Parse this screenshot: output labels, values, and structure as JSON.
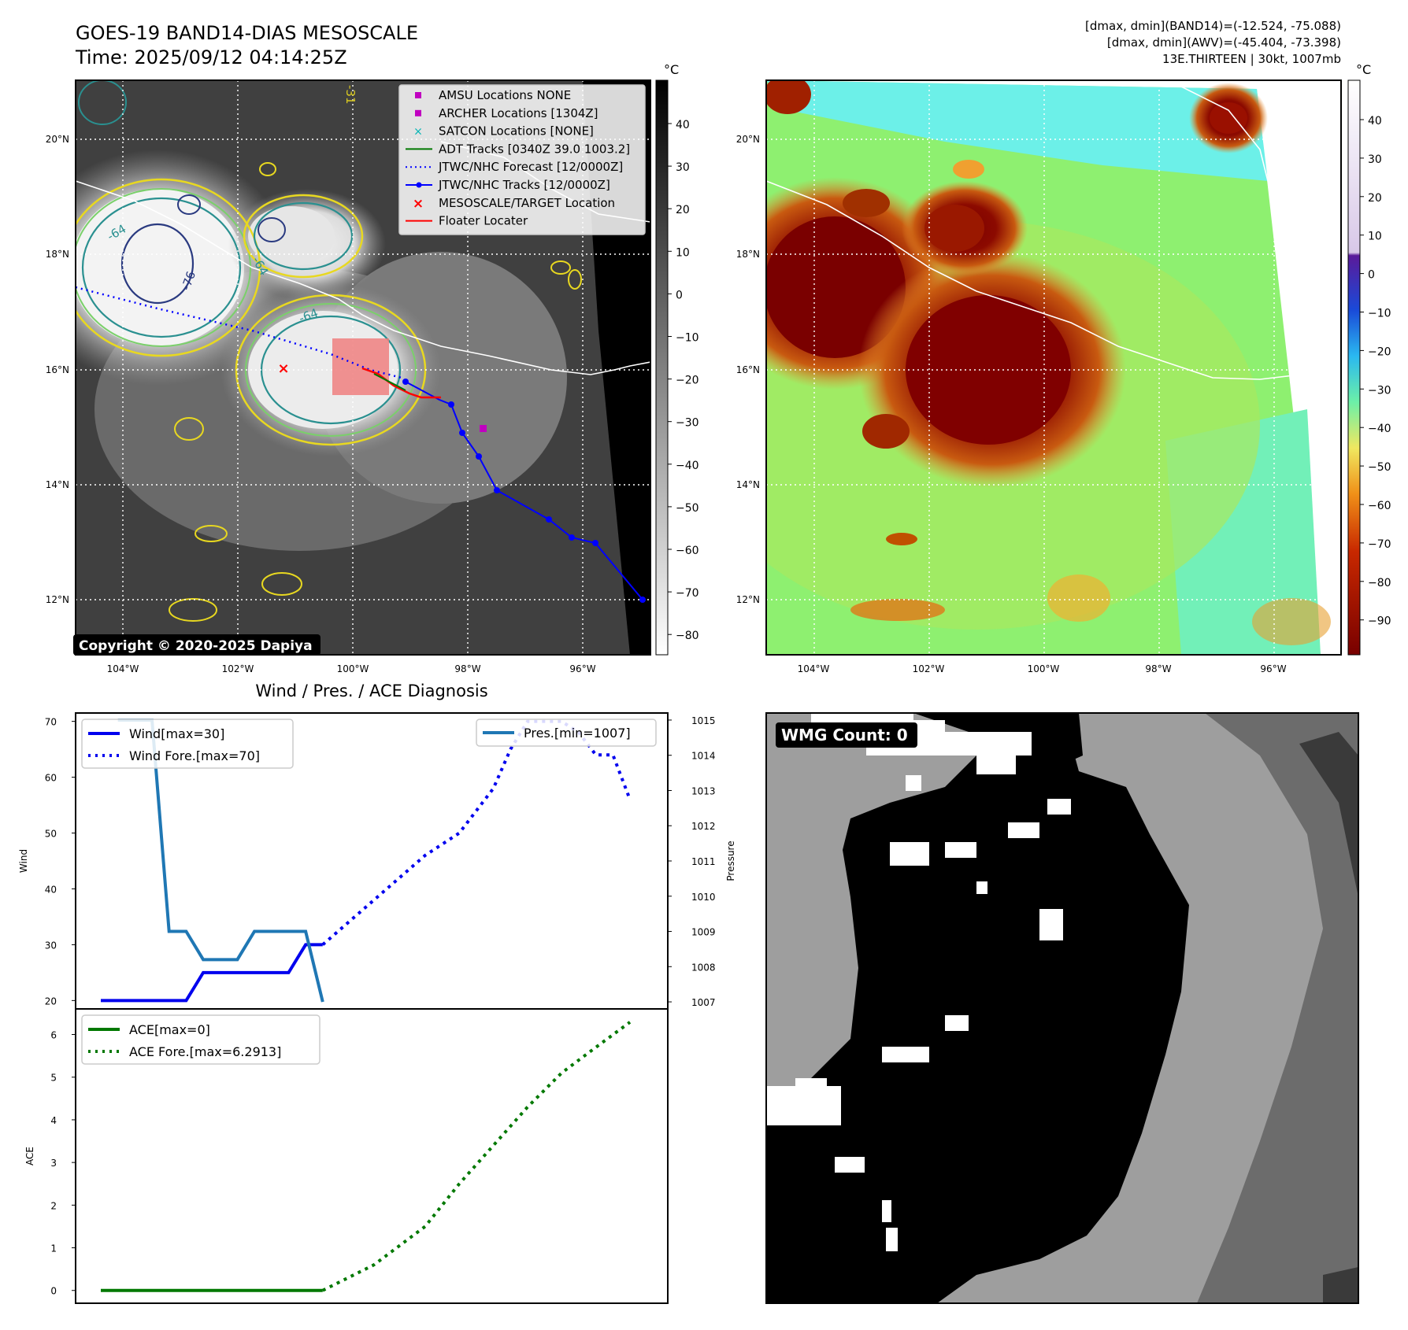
{
  "header": {
    "title_line1": "GOES-19 BAND14-DIAS MESOSCALE",
    "title_line2": "Time: 2025/09/12 04:14:25Z",
    "info_line1": "[dmax, dmin](BAND14)=(-12.524, -75.088)",
    "info_line2": "[dmax, dmin](AWV)=(-45.404, -73.398)",
    "info_line3": "13E.THIRTEEN | 30kt, 1007mb"
  },
  "ir_panel": {
    "copyright": "Copyright © 2020-2025 Dapiya",
    "contour_labels": [
      "-64",
      "-76",
      "-64",
      "-64",
      "-31"
    ],
    "colorbar_unit": "°C",
    "colorbar_ticks": [
      "40",
      "30",
      "20",
      "10",
      "0",
      "−10",
      "−20",
      "−30",
      "−40",
      "−50",
      "−60",
      "−70",
      "−80"
    ],
    "legend": [
      {
        "label": "AMSU Locations NONE",
        "color": "#c000c0"
      },
      {
        "label": "ARCHER Locations [1304Z]",
        "color": "#c000c0"
      },
      {
        "label": "SATCON Locations [NONE]",
        "color": "#00b4b4"
      },
      {
        "label": "ADT Tracks [0340Z 39.0 1003.2]",
        "color": "#007800"
      },
      {
        "label": "JTWC/NHC Forecast [12/0000Z]",
        "color": "#0000ff"
      },
      {
        "label": "JTWC/NHC Tracks [12/0000Z]",
        "color": "#0000ff"
      },
      {
        "label": "MESOSCALE/TARGET Location",
        "color": "#ff0000"
      },
      {
        "label": "Floater Locater",
        "color": "#ff0000"
      }
    ]
  },
  "map_axes": {
    "lat_labels": [
      "20°N",
      "18°N",
      "16°N",
      "14°N",
      "12°N"
    ],
    "lon_labels": [
      "104°W",
      "102°W",
      "100°W",
      "98°W",
      "96°W"
    ]
  },
  "awv_panel": {
    "colorbar_unit": "°C",
    "colorbar_ticks": [
      "40",
      "30",
      "20",
      "10",
      "0",
      "−10",
      "−20",
      "−30",
      "−40",
      "−50",
      "−60",
      "−70",
      "−80",
      "−90"
    ]
  },
  "wmg_panel": {
    "badge": "WMG Count: 0"
  },
  "chart_data": [
    {
      "type": "line",
      "title": "Wind / Pres. / ACE Diagnosis",
      "ylabel": "Wind",
      "ylabel_right": "Pressure",
      "ylim": [
        18.5,
        71.5
      ],
      "ylim_right": [
        1006.8,
        1015.2
      ],
      "yticks": [
        "70",
        "60",
        "50",
        "40",
        "30",
        "20"
      ],
      "yticks_right": [
        "1015",
        "1014",
        "1013",
        "1012",
        "1011",
        "1010",
        "1009",
        "1008",
        "1007"
      ],
      "series": [
        {
          "name": "Wind[max=30]",
          "style": "solid",
          "color": "#0000ee",
          "axis": "left",
          "x": [
            0,
            1,
            2,
            3,
            4,
            5,
            6,
            7,
            8,
            9,
            10,
            11,
            12,
            13
          ],
          "values": [
            20,
            20,
            20,
            20,
            20,
            20,
            25,
            25,
            25,
            25,
            25,
            25,
            30,
            30
          ]
        },
        {
          "name": "Wind Fore.[max=70]",
          "style": "dotted",
          "color": "#0000ee",
          "axis": "left",
          "x": [
            13,
            16,
            19,
            21,
            23,
            24,
            25,
            26,
            27,
            28,
            29,
            30,
            31
          ],
          "values": [
            30,
            38,
            46,
            50,
            58,
            65,
            70,
            70,
            70,
            68,
            64,
            64,
            56
          ]
        },
        {
          "name": "Pres.[min=1007]",
          "style": "solid",
          "color": "#1f77b4",
          "axis": "right",
          "x": [
            1,
            3,
            4,
            5,
            6,
            7,
            8,
            9,
            10,
            11,
            12,
            13
          ],
          "values": [
            1015,
            1015,
            1009,
            1009,
            1008.2,
            1008.2,
            1008.2,
            1009,
            1009,
            1009,
            1009,
            1007
          ]
        }
      ]
    },
    {
      "type": "line",
      "ylabel": "ACE",
      "ylim": [
        -0.3,
        6.6
      ],
      "yticks": [
        "6",
        "5",
        "4",
        "3",
        "2",
        "1",
        "0"
      ],
      "series": [
        {
          "name": "ACE[max=0]",
          "style": "solid",
          "color": "#007800",
          "x": [
            0,
            13
          ],
          "values": [
            0,
            0
          ]
        },
        {
          "name": "ACE Fore.[max=6.2913]",
          "style": "dotted",
          "color": "#007800",
          "x": [
            13,
            16,
            19,
            21,
            23,
            25,
            27,
            29,
            31
          ],
          "values": [
            0,
            0.6,
            1.5,
            2.5,
            3.4,
            4.3,
            5.1,
            5.7,
            6.29
          ]
        }
      ]
    }
  ]
}
